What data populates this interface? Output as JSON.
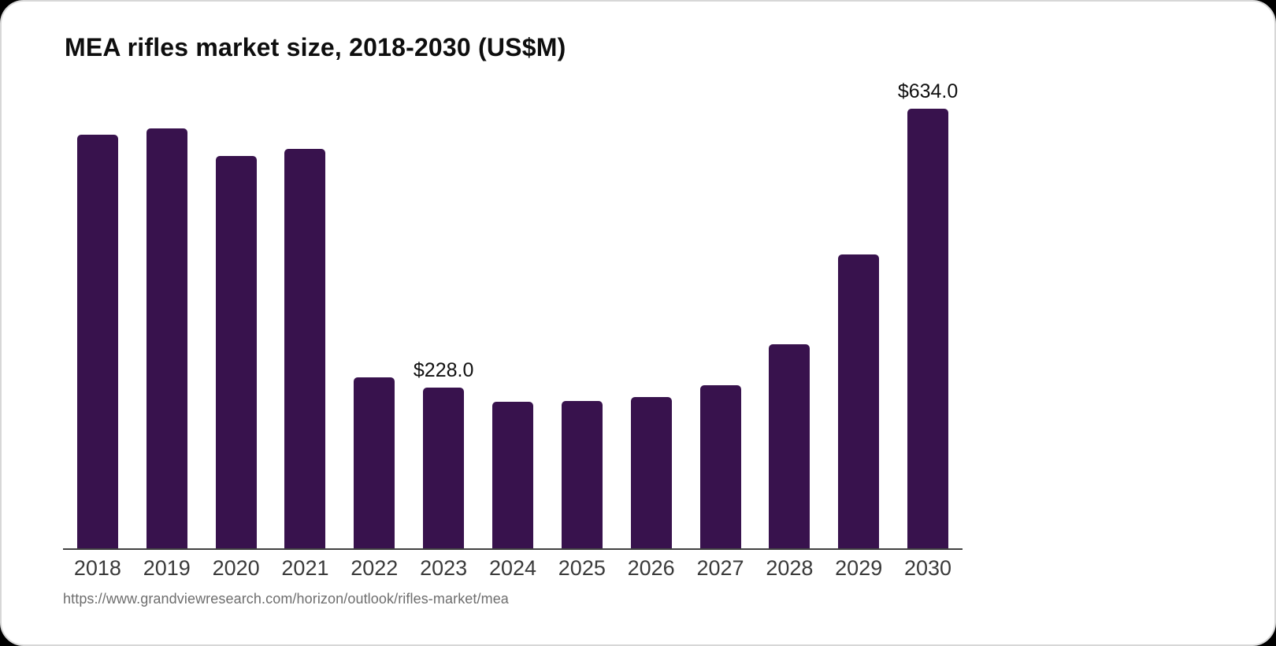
{
  "colors": {
    "bar": "#38124D",
    "axis_line": "#424242",
    "tick_label": "#3a3a3a",
    "value_label": "#101010",
    "title": "#0e0e0e",
    "source_text": "#6e6e6e",
    "card_background": "#ffffff",
    "page_background": "#000000",
    "card_border": "#d7d7d7"
  },
  "source": {
    "url_text": "https://www.grandviewresearch.com/horizon/outlook/rifles-market/mea"
  },
  "chart_data": {
    "type": "bar",
    "title": "MEA rifles market size, 2018-2030 (US$M)",
    "xlabel": "",
    "ylabel": "",
    "categories": [
      "2018",
      "2019",
      "2020",
      "2021",
      "2022",
      "2023",
      "2024",
      "2025",
      "2026",
      "2027",
      "2028",
      "2029",
      "2030"
    ],
    "values": [
      586,
      595,
      556,
      566,
      242,
      228.0,
      208,
      209,
      214,
      231,
      289,
      416,
      634.0
    ],
    "value_labels": [
      "",
      "",
      "",
      "",
      "",
      "$228.0",
      "",
      "",
      "",
      "",
      "",
      "",
      "$634.0"
    ],
    "ylim": [
      0,
      665
    ],
    "grid": false,
    "legend": false,
    "bar_color": "#38124D"
  }
}
